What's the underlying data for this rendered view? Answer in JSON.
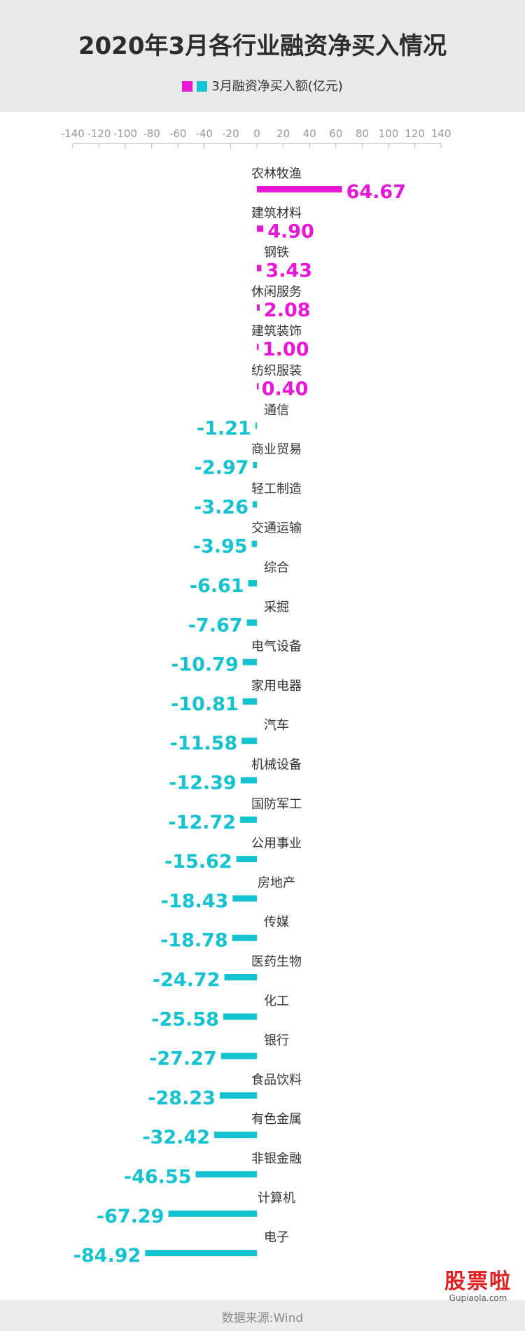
{
  "colors": {
    "positive": "#e916d8",
    "negative": "#14c3d1",
    "axis": "#b5b5b5",
    "label": "#333333"
  },
  "chart_data": {
    "type": "bar",
    "orientation": "horizontal",
    "title": "2020年3月各行业融资净买入情况",
    "legend_label": "3月融资净买入额(亿元)",
    "xlim": [
      -140,
      140
    ],
    "xticks": [
      -140,
      -120,
      -100,
      -80,
      -60,
      -40,
      -20,
      0,
      20,
      40,
      60,
      80,
      100,
      120,
      140
    ],
    "categories": [
      "农林牧渔",
      "建筑材料",
      "钢铁",
      "休闲服务",
      "建筑装饰",
      "纺织服装",
      "通信",
      "商业贸易",
      "轻工制造",
      "交通运输",
      "综合",
      "采掘",
      "电气设备",
      "家用电器",
      "汽车",
      "机械设备",
      "国防军工",
      "公用事业",
      "房地产",
      "传媒",
      "医药生物",
      "化工",
      "银行",
      "食品饮料",
      "有色金属",
      "非银金融",
      "计算机",
      "电子"
    ],
    "values": [
      64.67,
      4.9,
      3.43,
      2.08,
      1.0,
      0.4,
      -1.21,
      -2.97,
      -3.26,
      -3.95,
      -6.61,
      -7.67,
      -10.79,
      -10.81,
      -11.58,
      -12.39,
      -12.72,
      -15.62,
      -18.43,
      -18.78,
      -24.72,
      -25.58,
      -27.27,
      -28.23,
      -32.42,
      -46.55,
      -67.29,
      -84.92
    ],
    "value_labels": [
      "64.67",
      "4.90",
      "3.43",
      "2.08",
      "1.00",
      "0.40",
      "-1.21",
      "-2.97",
      "-3.26",
      "-3.95",
      "-6.61",
      "-7.67",
      "-10.79",
      "-10.81",
      "-11.58",
      "-12.39",
      "-12.72",
      "-15.62",
      "-18.43",
      "-18.78",
      "-24.72",
      "-25.58",
      "-27.27",
      "-28.23",
      "-32.42",
      "-46.55",
      "-67.29",
      "-84.92"
    ]
  },
  "footer": {
    "source": "数据来源:Wind"
  },
  "watermark": {
    "main": "股票啦",
    "sub": "Gupiaola.com"
  }
}
